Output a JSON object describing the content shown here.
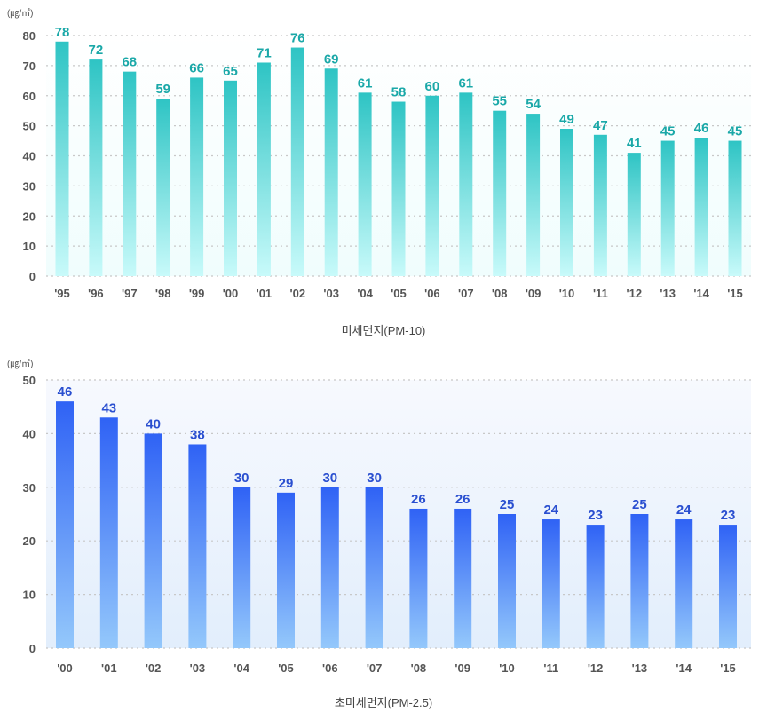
{
  "chart_data": [
    {
      "type": "bar",
      "title": "미세먼지(PM-10)",
      "ylabel": "(㎍/㎥)",
      "ylim": [
        0,
        80
      ],
      "yticks": [
        0,
        10,
        20,
        30,
        40,
        50,
        60,
        70,
        80
      ],
      "grid": true,
      "categories": [
        "'95",
        "'96",
        "'97",
        "'98",
        "'99",
        "'00",
        "'01",
        "'02",
        "'03",
        "'04",
        "'05",
        "'06",
        "'07",
        "'08",
        "'09",
        "'10",
        "'11",
        "'12",
        "'13",
        "'14",
        "'15"
      ],
      "values": [
        78,
        72,
        68,
        59,
        66,
        65,
        71,
        76,
        69,
        61,
        58,
        60,
        61,
        55,
        54,
        49,
        47,
        41,
        45,
        46,
        45
      ],
      "color_top": "#2ec4c4",
      "color_bottom": "#c8fafa",
      "label_color": "#1aa8a8"
    },
    {
      "type": "bar",
      "title": "초미세먼지(PM-2.5)",
      "ylabel": "(㎍/㎥)",
      "ylim": [
        0,
        50
      ],
      "yticks": [
        0,
        10,
        20,
        30,
        40,
        50
      ],
      "grid": true,
      "categories": [
        "'00",
        "'01",
        "'02",
        "'03",
        "'04",
        "'05",
        "'06",
        "'07",
        "'08",
        "'09",
        "'10",
        "'11",
        "'12",
        "'13",
        "'14",
        "'15"
      ],
      "values": [
        46,
        43,
        40,
        38,
        30,
        29,
        30,
        30,
        26,
        26,
        25,
        24,
        23,
        25,
        24,
        23
      ],
      "color_top": "#2f62f5",
      "color_bottom": "#94c8fb",
      "label_color": "#2a4fd0"
    }
  ]
}
